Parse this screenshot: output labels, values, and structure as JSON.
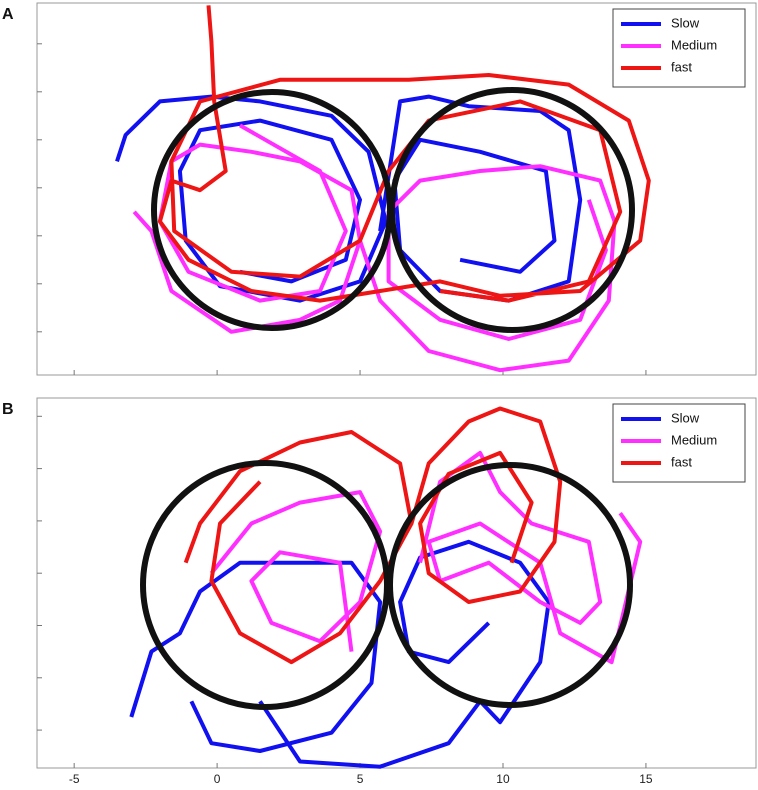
{
  "chart_data": [
    {
      "type": "line",
      "panel_label": "A",
      "xlim": [
        -6.3,
        18.85
      ],
      "ylim": [
        -7.8,
        7.7
      ],
      "xticks": [
        -5,
        0,
        5,
        10,
        15
      ],
      "show_xtick_labels": false,
      "yticks": [
        -6,
        -4,
        -2,
        0,
        2,
        4,
        6
      ],
      "legend": "upper right",
      "series": [
        {
          "name": "Slow",
          "color": "#1010f0",
          "x": [
            -3.5,
            -3.2,
            -2.0,
            -0.2,
            1.5,
            4.0,
            5.3,
            5.9,
            5.0,
            2.9,
            0.1,
            -1.1,
            -1.3,
            -0.6,
            1.5,
            4.0,
            5.0,
            4.5,
            2.6,
            0.8,
            null,
            5.7,
            6.4,
            7.4,
            8.8,
            11.3,
            12.3,
            12.7,
            12.3,
            10.2,
            7.8,
            6.4,
            6.2,
            7.1,
            9.2,
            11.5,
            11.8,
            10.6,
            8.5
          ],
          "values": [
            1.1,
            2.2,
            3.6,
            3.8,
            3.6,
            3.0,
            1.5,
            -1.4,
            -3.9,
            -4.7,
            -4.1,
            -2.2,
            0.7,
            2.4,
            2.8,
            2.0,
            -0.5,
            -3.0,
            -3.9,
            -3.5,
            null,
            -1.8,
            3.6,
            3.8,
            3.4,
            3.2,
            2.4,
            -0.5,
            -3.9,
            -4.7,
            -4.3,
            -2.6,
            0.3,
            2.0,
            1.5,
            0.7,
            -2.2,
            -3.5,
            -3.0
          ]
        },
        {
          "name": "Medium",
          "color": "#ff30ff",
          "x": [
            -2.9,
            -2.3,
            -1.6,
            0.5,
            2.9,
            4.3,
            5.0,
            4.7,
            2.9,
            1.2,
            -0.6,
            -1.6,
            -2.0,
            -1.0,
            1.5,
            3.6,
            4.5,
            3.6,
            0.8,
            null,
            5.0,
            5.7,
            7.4,
            9.9,
            12.3,
            13.7,
            13.9,
            13.4,
            11.3,
            9.2,
            7.1,
            6.0,
            6.0,
            7.8,
            10.2,
            12.7,
            13.6,
            13.0
          ],
          "values": [
            -1.0,
            -1.8,
            -4.3,
            -6.0,
            -5.5,
            -4.7,
            -2.2,
            -0.1,
            1.1,
            1.5,
            1.8,
            1.1,
            -1.4,
            -3.5,
            -4.7,
            -4.3,
            -1.8,
            0.7,
            2.6,
            null,
            -2.2,
            -4.7,
            -6.8,
            -7.6,
            -7.2,
            -4.7,
            -1.4,
            0.3,
            0.9,
            0.7,
            0.3,
            -1.0,
            -3.9,
            -5.5,
            -6.3,
            -5.5,
            -2.6,
            -0.5
          ]
        },
        {
          "name": "fast",
          "color": "#ee1515",
          "x": [
            -0.3,
            -0.2,
            -0.1,
            0.3,
            -0.6,
            -1.6,
            -2.0,
            -1.0,
            1.2,
            3.6,
            5.7,
            7.8,
            9.9,
            12.7,
            14.8,
            15.1,
            14.4,
            12.3,
            9.5,
            6.7,
            4.7,
            2.2,
            -0.6,
            -1.6,
            -1.5,
            0.5,
            2.9,
            5.0,
            6.0,
            7.4,
            10.6,
            13.4,
            14.1,
            13.0,
            10.2,
            7.8
          ],
          "values": [
            7.6,
            6.1,
            3.6,
            0.7,
            -0.1,
            0.3,
            -1.4,
            -3.0,
            -4.3,
            -4.7,
            -4.3,
            -3.9,
            -4.5,
            -4.3,
            -2.2,
            0.3,
            2.8,
            4.3,
            4.7,
            4.5,
            4.5,
            4.5,
            3.6,
            1.1,
            -1.8,
            -3.5,
            -3.7,
            -2.2,
            0.7,
            2.8,
            3.6,
            2.4,
            -1.0,
            -3.9,
            -4.7,
            -4.3
          ]
        }
      ]
    },
    {
      "type": "line",
      "panel_label": "B",
      "xlim": [
        -6.3,
        18.85
      ],
      "ylim": [
        -7.45,
        6.7
      ],
      "xticks": [
        -5,
        0,
        5,
        10,
        15
      ],
      "show_xtick_labels": true,
      "yticks": [
        -6,
        -4,
        -2,
        0,
        2,
        4,
        6
      ],
      "legend": "upper right",
      "series": [
        {
          "name": "Slow",
          "color": "#1010f0",
          "x": [
            -3.0,
            -2.3,
            -1.3,
            -0.6,
            0.8,
            2.9,
            4.7,
            5.7,
            5.4,
            4.0,
            1.5,
            -0.2,
            -0.9,
            null,
            1.5,
            2.9,
            5.7,
            8.1,
            9.2,
            9.9,
            11.3,
            11.6,
            10.6,
            8.8,
            7.1,
            6.4,
            6.7,
            8.1,
            9.5
          ],
          "values": [
            -5.5,
            -3.0,
            -2.3,
            -0.7,
            0.4,
            0.4,
            0.4,
            -1.1,
            -4.2,
            -6.1,
            -6.8,
            -6.5,
            -4.9,
            null,
            -4.9,
            -7.2,
            -7.4,
            -6.5,
            -4.9,
            -5.7,
            -3.4,
            -1.1,
            0.4,
            1.2,
            0.6,
            -1.1,
            -3.0,
            -3.4,
            -1.9
          ]
        },
        {
          "name": "Medium",
          "color": "#ff30ff",
          "x": [
            -0.2,
            1.2,
            2.9,
            5.0,
            5.7,
            5.0,
            3.6,
            1.9,
            1.2,
            2.2,
            4.3,
            4.7,
            null,
            7.1,
            7.8,
            9.2,
            9.9,
            11.0,
            13.0,
            13.4,
            12.7,
            11.3,
            9.5,
            7.8,
            7.4,
            9.2,
            11.3,
            12.0,
            13.8,
            14.8,
            14.1
          ],
          "values": [
            0.0,
            1.9,
            2.7,
            3.1,
            1.6,
            -1.1,
            -2.6,
            -1.9,
            -0.3,
            0.8,
            0.4,
            -3.0,
            null,
            0.4,
            3.5,
            4.6,
            3.1,
            1.9,
            1.2,
            -1.1,
            -1.9,
            -1.1,
            0.4,
            -0.3,
            1.2,
            1.9,
            0.4,
            -2.3,
            -3.4,
            1.2,
            2.3
          ]
        },
        {
          "name": "fast",
          "color": "#ee1515",
          "x": [
            -1.1,
            -0.6,
            0.8,
            2.9,
            4.7,
            6.4,
            6.8,
            5.7,
            4.3,
            2.6,
            0.8,
            -0.2,
            0.1,
            1.5,
            null,
            6.8,
            7.4,
            8.8,
            9.9,
            11.3,
            12.0,
            11.8,
            10.6,
            8.8,
            7.4,
            7.1,
            8.1,
            9.9,
            11.0,
            10.3
          ],
          "values": [
            0.4,
            1.9,
            3.9,
            5.0,
            5.4,
            4.2,
            1.9,
            -0.3,
            -2.3,
            -3.4,
            -2.3,
            -0.3,
            1.9,
            3.5,
            null,
            1.9,
            4.2,
            5.8,
            6.3,
            5.8,
            3.5,
            1.2,
            -0.7,
            -1.1,
            0.0,
            1.9,
            3.8,
            4.6,
            2.7,
            0.4
          ]
        }
      ]
    }
  ]
}
